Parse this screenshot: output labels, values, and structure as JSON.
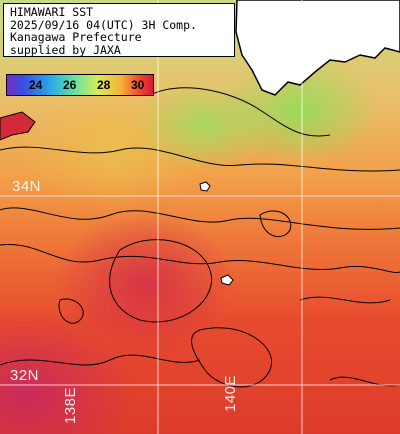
{
  "header": {
    "line1": "HIMAWARI SST",
    "line2": "2025/09/16 04(UTC) 3H Comp.",
    "line3": "Kanagawa Prefecture",
    "line4": "supplied by JAXA"
  },
  "colorbar": {
    "ticks": [
      "24",
      "26",
      "28",
      "30"
    ]
  },
  "graticule": {
    "lat_labels": [
      "34N",
      "32N"
    ],
    "lon_labels": [
      "138E",
      "140E"
    ]
  }
}
